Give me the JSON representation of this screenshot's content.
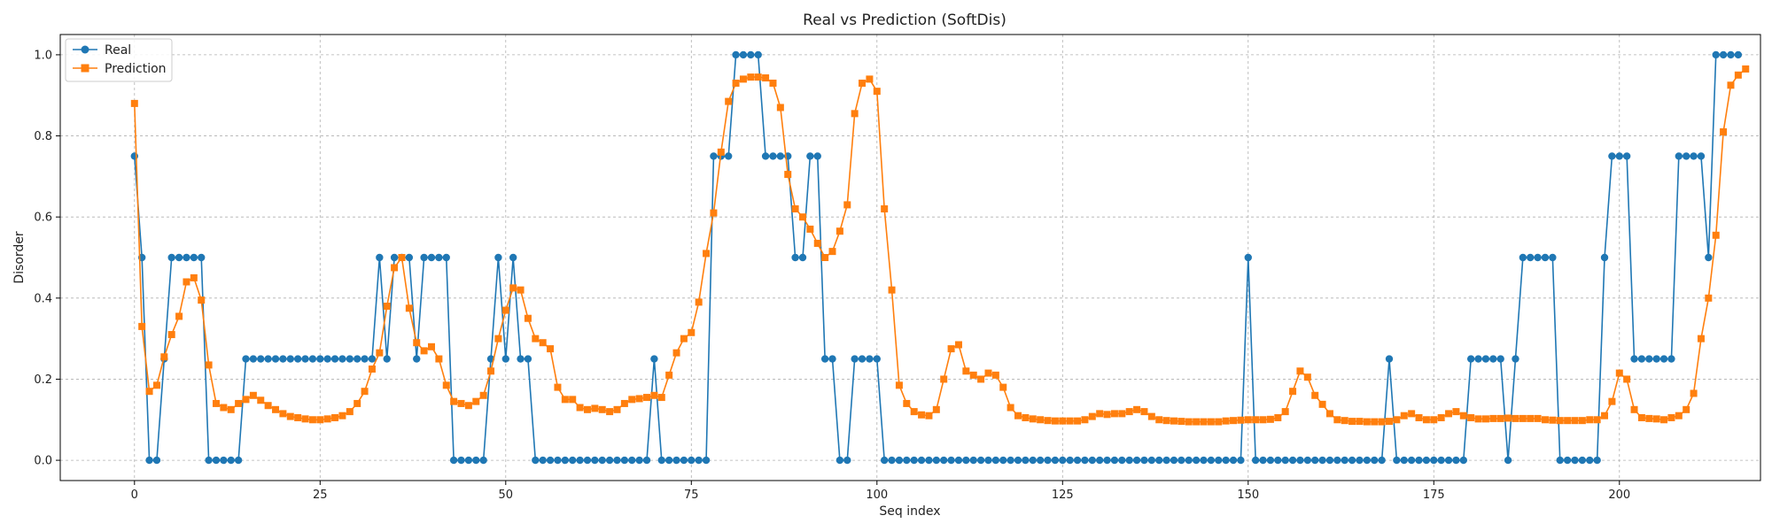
{
  "chart_data": {
    "type": "line",
    "title": "Real vs Prediction (SoftDis)",
    "xlabel": "Seq index",
    "ylabel": "Disorder",
    "xlim": [
      -10,
      219
    ],
    "ylim": [
      -0.05,
      1.05
    ],
    "xticks": [
      0,
      25,
      50,
      75,
      100,
      125,
      150,
      175,
      200
    ],
    "yticks": [
      0.0,
      0.2,
      0.4,
      0.6,
      0.8,
      1.0
    ],
    "grid": true,
    "legend_position": "top-left",
    "series": [
      {
        "name": "Real",
        "color": "#1f77b4",
        "marker": "circle",
        "values": [
          0.75,
          0.5,
          0,
          0,
          0.25,
          0.5,
          0.5,
          0.5,
          0.5,
          0.5,
          0,
          0,
          0,
          0,
          0,
          0.25,
          0.25,
          0.25,
          0.25,
          0.25,
          0.25,
          0.25,
          0.25,
          0.25,
          0.25,
          0.25,
          0.25,
          0.25,
          0.25,
          0.25,
          0.25,
          0.25,
          0.25,
          0.5,
          0.25,
          0.5,
          0.5,
          0.5,
          0.25,
          0.5,
          0.5,
          0.5,
          0.5,
          0,
          0,
          0,
          0,
          0,
          0.25,
          0.5,
          0.25,
          0.5,
          0.25,
          0.25,
          0,
          0,
          0,
          0,
          0,
          0,
          0,
          0,
          0,
          0,
          0,
          0,
          0,
          0,
          0,
          0,
          0.25,
          0,
          0,
          0,
          0,
          0,
          0,
          0,
          0.75,
          0.75,
          0.75,
          1,
          1,
          1,
          1,
          0.75,
          0.75,
          0.75,
          0.75,
          0.5,
          0.5,
          0.75,
          0.75,
          0.25,
          0.25,
          0,
          0,
          0.25,
          0.25,
          0.25,
          0.25,
          0,
          0,
          0,
          0,
          0,
          0,
          0,
          0,
          0,
          0,
          0,
          0,
          0,
          0,
          0,
          0,
          0,
          0,
          0,
          0,
          0,
          0,
          0,
          0,
          0,
          0,
          0,
          0,
          0,
          0,
          0,
          0,
          0,
          0,
          0,
          0,
          0,
          0,
          0,
          0,
          0,
          0,
          0,
          0,
          0,
          0,
          0,
          0,
          0,
          0.5,
          0,
          0,
          0,
          0,
          0,
          0,
          0,
          0,
          0,
          0,
          0,
          0,
          0,
          0,
          0,
          0,
          0,
          0,
          0.25,
          0,
          0,
          0,
          0,
          0,
          0,
          0,
          0,
          0,
          0,
          0.25,
          0.25,
          0.25,
          0.25,
          0.25,
          0,
          0.25,
          0.5,
          0.5,
          0.5,
          0.5,
          0.5,
          0,
          0,
          0,
          0,
          0,
          0,
          0.5,
          0.75,
          0.75,
          0.75,
          0.25,
          0.25,
          0.25,
          0.25,
          0.25,
          0.25,
          0.75,
          0.75,
          0.75,
          0.75,
          0.5,
          1,
          1,
          1,
          1
        ]
      },
      {
        "name": "Prediction",
        "color": "#ff7f0e",
        "marker": "square",
        "values": [
          0.88,
          0.33,
          0.17,
          0.185,
          0.255,
          0.31,
          0.355,
          0.44,
          0.45,
          0.395,
          0.235,
          0.14,
          0.13,
          0.125,
          0.14,
          0.15,
          0.16,
          0.148,
          0.135,
          0.125,
          0.115,
          0.108,
          0.105,
          0.102,
          0.1,
          0.1,
          0.102,
          0.105,
          0.11,
          0.12,
          0.14,
          0.17,
          0.225,
          0.265,
          0.38,
          0.475,
          0.5,
          0.375,
          0.29,
          0.27,
          0.28,
          0.25,
          0.185,
          0.145,
          0.14,
          0.135,
          0.145,
          0.16,
          0.22,
          0.3,
          0.37,
          0.425,
          0.42,
          0.35,
          0.3,
          0.29,
          0.275,
          0.18,
          0.15,
          0.15,
          0.13,
          0.125,
          0.128,
          0.125,
          0.12,
          0.125,
          0.14,
          0.15,
          0.152,
          0.155,
          0.16,
          0.155,
          0.21,
          0.265,
          0.3,
          0.315,
          0.39,
          0.51,
          0.61,
          0.76,
          0.885,
          0.93,
          0.94,
          0.945,
          0.945,
          0.943,
          0.93,
          0.87,
          0.705,
          0.62,
          0.6,
          0.57,
          0.535,
          0.5,
          0.515,
          0.565,
          0.63,
          0.855,
          0.93,
          0.94,
          0.91,
          0.62,
          0.42,
          0.185,
          0.14,
          0.12,
          0.112,
          0.11,
          0.125,
          0.2,
          0.275,
          0.285,
          0.22,
          0.21,
          0.2,
          0.215,
          0.21,
          0.18,
          0.13,
          0.11,
          0.105,
          0.102,
          0.1,
          0.098,
          0.097,
          0.097,
          0.097,
          0.097,
          0.1,
          0.108,
          0.115,
          0.113,
          0.115,
          0.115,
          0.12,
          0.125,
          0.12,
          0.108,
          0.1,
          0.098,
          0.097,
          0.096,
          0.095,
          0.095,
          0.095,
          0.095,
          0.095,
          0.097,
          0.098,
          0.099,
          0.1,
          0.1,
          0.1,
          0.101,
          0.105,
          0.12,
          0.17,
          0.22,
          0.205,
          0.16,
          0.138,
          0.115,
          0.1,
          0.098,
          0.096,
          0.096,
          0.095,
          0.095,
          0.095,
          0.096,
          0.1,
          0.11,
          0.115,
          0.105,
          0.1,
          0.1,
          0.105,
          0.115,
          0.12,
          0.11,
          0.105,
          0.102,
          0.102,
          0.103,
          0.103,
          0.104,
          0.103,
          0.103,
          0.103,
          0.103,
          0.1,
          0.099,
          0.098,
          0.098,
          0.098,
          0.098,
          0.1,
          0.1,
          0.11,
          0.145,
          0.215,
          0.2,
          0.125,
          0.105,
          0.103,
          0.102,
          0.1,
          0.105,
          0.11,
          0.125,
          0.165,
          0.3,
          0.4,
          0.555,
          0.81,
          0.925,
          0.95,
          0.965
        ]
      }
    ]
  }
}
